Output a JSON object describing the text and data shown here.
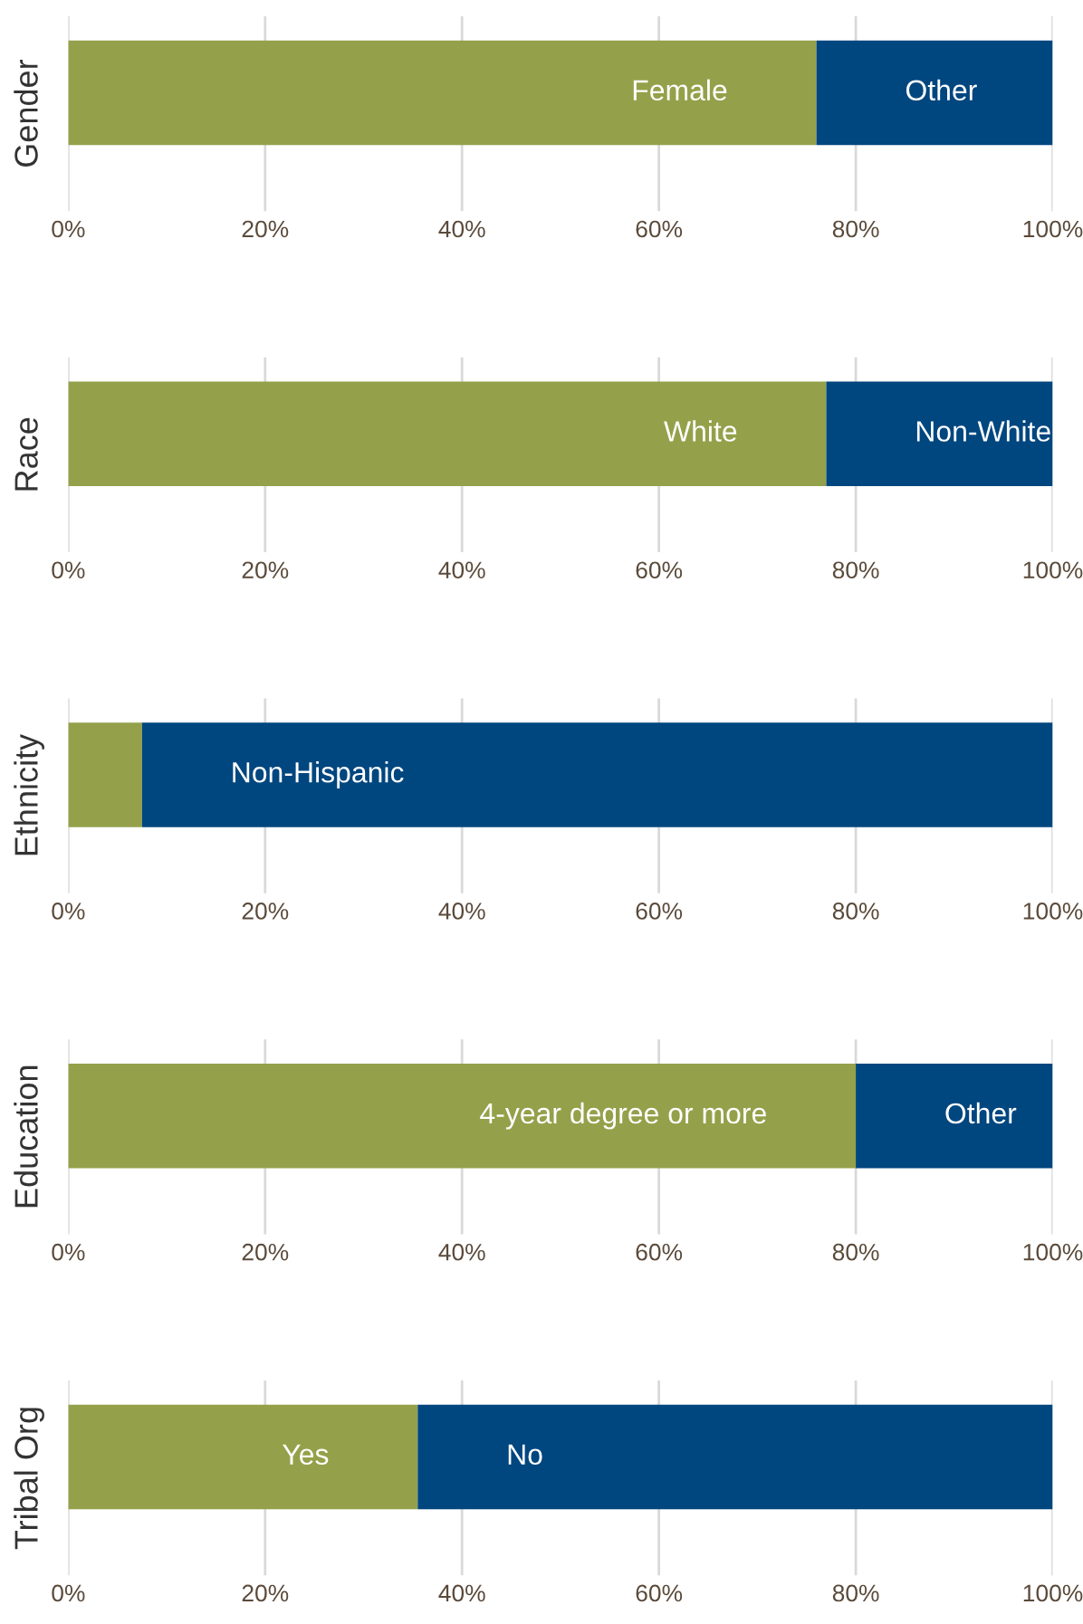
{
  "chart_data": [
    {
      "type": "bar",
      "orientation": "horizontal",
      "stacked": true,
      "ylabel": "Gender",
      "categories": [
        null
      ],
      "series": [
        {
          "name": "Female",
          "color": "#94a14a",
          "values": [
            76
          ]
        },
        {
          "name": "Other",
          "color": "#00467f",
          "values": [
            24
          ]
        }
      ],
      "xlim": [
        0,
        100
      ],
      "xticks": [
        {
          "value": 0,
          "label": "0%"
        },
        {
          "value": 20,
          "label": "20%"
        },
        {
          "value": 40,
          "label": "40%"
        },
        {
          "value": 60,
          "label": "60%"
        },
        {
          "value": 80,
          "label": "80%"
        },
        {
          "value": 100,
          "label": "100%"
        }
      ],
      "grid": "x",
      "legend": false
    },
    {
      "type": "bar",
      "orientation": "horizontal",
      "stacked": true,
      "ylabel": "Race",
      "categories": [
        null
      ],
      "series": [
        {
          "name": "White",
          "color": "#94a14a",
          "values": [
            77
          ]
        },
        {
          "name": "Non-White",
          "color": "#00467f",
          "values": [
            23
          ]
        }
      ],
      "xlim": [
        0,
        100
      ],
      "xticks": [
        {
          "value": 0,
          "label": "0%"
        },
        {
          "value": 20,
          "label": "20%"
        },
        {
          "value": 40,
          "label": "40%"
        },
        {
          "value": 60,
          "label": "60%"
        },
        {
          "value": 80,
          "label": "80%"
        },
        {
          "value": 100,
          "label": "100%"
        }
      ],
      "grid": "x",
      "legend": false
    },
    {
      "type": "bar",
      "orientation": "horizontal",
      "stacked": true,
      "ylabel": "Ethnicity",
      "categories": [
        null
      ],
      "series": [
        {
          "color": "#94a14a",
          "values": [
            7.5
          ]
        },
        {
          "name": "Non-Hispanic",
          "color": "#00467f",
          "values": [
            92.5
          ]
        }
      ],
      "xlim": [
        0,
        100
      ],
      "xticks": [
        {
          "value": 0,
          "label": "0%"
        },
        {
          "value": 20,
          "label": "20%"
        },
        {
          "value": 40,
          "label": "40%"
        },
        {
          "value": 60,
          "label": "60%"
        },
        {
          "value": 80,
          "label": "80%"
        },
        {
          "value": 100,
          "label": "100%"
        }
      ],
      "grid": "x",
      "legend": false
    },
    {
      "type": "bar",
      "orientation": "horizontal",
      "stacked": true,
      "ylabel": "Education",
      "categories": [
        null
      ],
      "series": [
        {
          "name": "4-year degree or more",
          "color": "#94a14a",
          "values": [
            80
          ]
        },
        {
          "name": "Other",
          "color": "#00467f",
          "values": [
            20
          ]
        }
      ],
      "xlim": [
        0,
        100
      ],
      "xticks": [
        {
          "value": 0,
          "label": "0%"
        },
        {
          "value": 20,
          "label": "20%"
        },
        {
          "value": 40,
          "label": "40%"
        },
        {
          "value": 60,
          "label": "60%"
        },
        {
          "value": 80,
          "label": "80%"
        },
        {
          "value": 100,
          "label": "100%"
        }
      ],
      "grid": "x",
      "legend": false
    },
    {
      "type": "bar",
      "orientation": "horizontal",
      "stacked": true,
      "ylabel": "Tribal Org",
      "categories": [
        null
      ],
      "series": [
        {
          "name": "Yes",
          "color": "#94a14a",
          "values": [
            35.5
          ]
        },
        {
          "name": "No",
          "color": "#00467f",
          "values": [
            64.5
          ]
        }
      ],
      "xlim": [
        0,
        100
      ],
      "xticks": [
        {
          "value": 0,
          "label": "0%"
        },
        {
          "value": 20,
          "label": "20%"
        },
        {
          "value": 40,
          "label": "40%"
        },
        {
          "value": 60,
          "label": "60%"
        },
        {
          "value": 80,
          "label": "80%"
        },
        {
          "value": 100,
          "label": "100%"
        }
      ],
      "grid": "x",
      "legend": false
    }
  ]
}
